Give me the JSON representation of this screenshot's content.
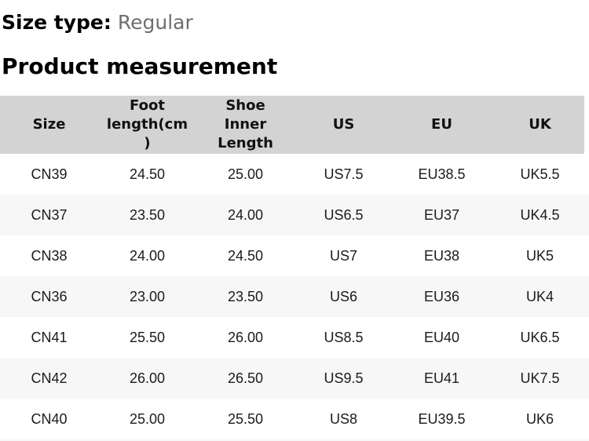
{
  "header": {
    "size_type_label": "Size type:",
    "size_type_value": "Regular",
    "section_title": "Product measurement"
  },
  "size_table": {
    "columns": [
      "Size",
      "Foot\nlength(cm\n)",
      "Shoe\nInner\nLength",
      "US",
      "EU",
      "UK"
    ],
    "rows": [
      [
        "CN39",
        "24.50",
        "25.00",
        "US7.5",
        "EU38.5",
        "UK5.5"
      ],
      [
        "CN37",
        "23.50",
        "24.00",
        "US6.5",
        "EU37",
        "UK4.5"
      ],
      [
        "CN38",
        "24.00",
        "24.50",
        "US7",
        "EU38",
        "UK5"
      ],
      [
        "CN36",
        "23.00",
        "23.50",
        "US6",
        "EU36",
        "UK4"
      ],
      [
        "CN41",
        "25.50",
        "26.00",
        "US8.5",
        "EU40",
        "UK6.5"
      ],
      [
        "CN42",
        "26.00",
        "26.50",
        "US9.5",
        "EU41",
        "UK7.5"
      ],
      [
        "CN40",
        "25.00",
        "25.50",
        "US8",
        "EU39.5",
        "UK6"
      ]
    ]
  },
  "colors": {
    "table_header_bg": "#d3d3d3",
    "row_alt_bg": "#f7f7f7",
    "heading_text": "#000000",
    "body_text": "#1b1b1b",
    "muted_text": "#6e6e6e"
  }
}
